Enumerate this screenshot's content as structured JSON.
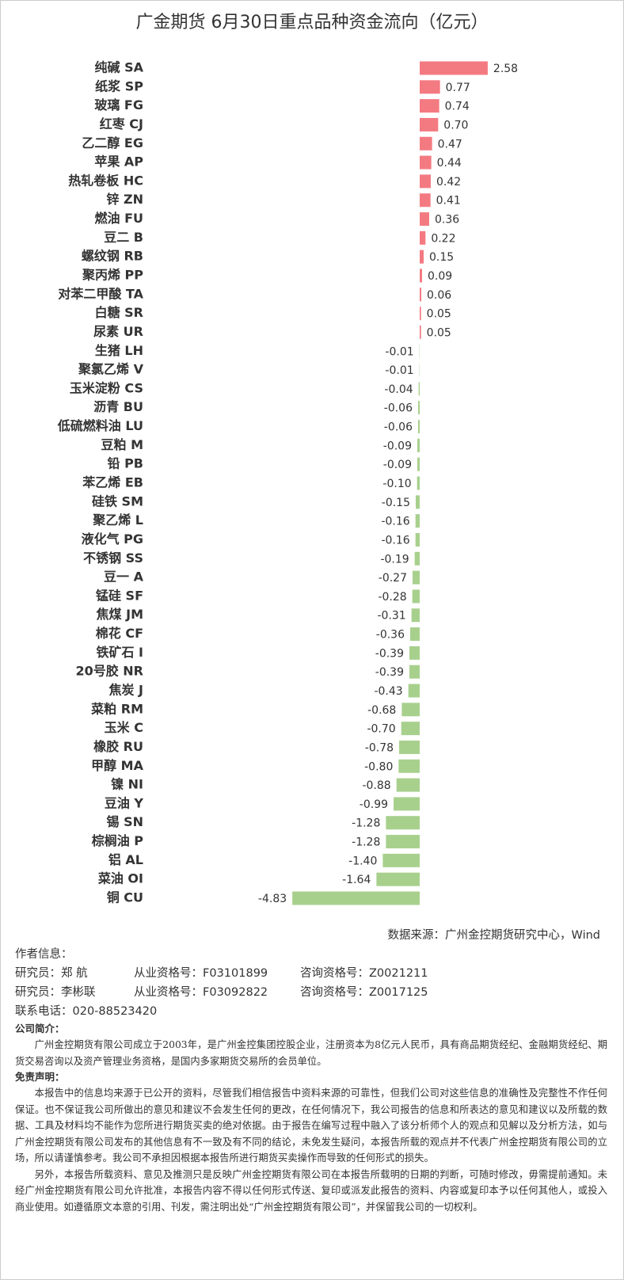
{
  "chart_data": {
    "type": "hbar",
    "title": "广金期货 6月30日重点品种资金流向（亿元）",
    "source": "数据来源：广州金控期货研究中心，Wind",
    "color_positive": "#f47a82",
    "color_negative": "#a8d08d",
    "categories": [
      "纯碱 SA",
      "纸浆 SP",
      "玻璃 FG",
      "红枣 CJ",
      "乙二醇 EG",
      "苹果 AP",
      "热轧卷板 HC",
      "锌 ZN",
      "燃油 FU",
      "豆二 B",
      "螺纹钢 RB",
      "聚丙烯 PP",
      "对苯二甲酸 TA",
      "白糖 SR",
      "尿素 UR",
      "生猪 LH",
      "聚氯乙烯 V",
      "玉米淀粉 CS",
      "沥青 BU",
      "低硫燃料油 LU",
      "豆粕 M",
      "铅 PB",
      "苯乙烯 EB",
      "硅铁 SM",
      "聚乙烯 L",
      "液化气 PG",
      "不锈钢 SS",
      "豆一 A",
      "锰硅 SF",
      "焦煤 JM",
      "棉花 CF",
      "铁矿石 I",
      "20号胶 NR",
      "焦炭 J",
      "菜粕 RM",
      "玉米 C",
      "橡胶 RU",
      "甲醇 MA",
      "镍 NI",
      "豆油 Y",
      "锡 SN",
      "棕榈油 P",
      "铝 AL",
      "菜油 OI",
      "铜 CU"
    ],
    "values": [
      2.58,
      0.77,
      0.74,
      0.7,
      0.47,
      0.44,
      0.42,
      0.41,
      0.36,
      0.22,
      0.15,
      0.09,
      0.06,
      0.05,
      0.05,
      -0.01,
      -0.01,
      -0.04,
      -0.06,
      -0.06,
      -0.09,
      -0.09,
      -0.1,
      -0.15,
      -0.16,
      -0.16,
      -0.19,
      -0.27,
      -0.28,
      -0.31,
      -0.36,
      -0.39,
      -0.39,
      -0.43,
      -0.68,
      -0.7,
      -0.78,
      -0.8,
      -0.88,
      -0.99,
      -1.28,
      -1.28,
      -1.4,
      -1.64,
      -4.83
    ],
    "value_labels": [
      "2.58",
      "0.77",
      "0.74",
      "0.70",
      "0.47",
      "0.44",
      "0.42",
      "0.41",
      "0.36",
      "0.22",
      "0.15",
      "0.09",
      "0.06",
      "0.05",
      "0.05",
      "-0.01",
      "-0.01",
      "-0.04",
      "-0.06",
      "-0.06",
      "-0.09",
      "-0.09",
      "-0.10",
      "-0.15",
      "-0.16",
      "-0.16",
      "-0.19",
      "-0.27",
      "-0.28",
      "-0.31",
      "-0.36",
      "-0.39",
      "-0.39",
      "-0.43",
      "-0.68",
      "-0.70",
      "-0.78",
      "-0.80",
      "-0.88",
      "-0.99",
      "-1.28",
      "-1.28",
      "-1.40",
      "-1.64",
      "-4.83"
    ]
  },
  "info": {
    "authors_heading": "作者信息：",
    "authors": [
      {
        "name": "研究员：郑 航",
        "license": "从业资格号：F03101899",
        "consult": "咨询资格号：Z0021211"
      },
      {
        "name": "研究员：李彬联",
        "license": "从业资格号：F03092822",
        "consult": "咨询资格号：Z0017125"
      }
    ],
    "phone": "联系电话：020-88523420",
    "about_heading": "公司简介：",
    "about": "广州金控期货有限公司成立于2003年，是广州金控集团控股企业，注册资本为8亿元人民币，具有商品期货经纪、金融期货经纪、期货交易咨询以及资产管理业务资格，是国内多家期货交易所的会员单位。",
    "disclaimer_heading": "免责声明：",
    "disclaimer": [
      "本报告中的信息均来源于已公开的资料，尽管我们相信报告中资料来源的可靠性，但我们公司对这些信息的准确性及完整性不作任何保证。也不保证我公司所做出的意见和建议不会发生任何的更改，在任何情况下，我公司报告的信息和所表达的意见和建议以及所载的数据、工具及材料均不能作为您所进行期货买卖的绝对依据。由于报告在编写过程中融入了该分析师个人的观点和见解以及分析方法，如与广州金控期货有限公司发布的其他信息有不一致及有不同的结论，未免发生疑问，本报告所载的观点并不代表广州金控期货有限公司的立场，所以请谨慎参考。我公司不承担因根据本报告所进行期货买卖操作而导致的任何形式的损失。",
      "另外，本报告所载资料、意见及推测只是反映广州金控期货有限公司在本报告所载明的日期的判断，可随时修改，毋需提前通知。未经广州金控期货有限公司允许批准，本报告内容不得以任何形式传送、复印或派发此报告的资料、内容或复印本予以任何其他人，或投入商业使用。如遵循原文本意的引用、刊发，需注明出处“广州金控期货有限公司”，并保留我公司的一切权利。"
    ]
  }
}
